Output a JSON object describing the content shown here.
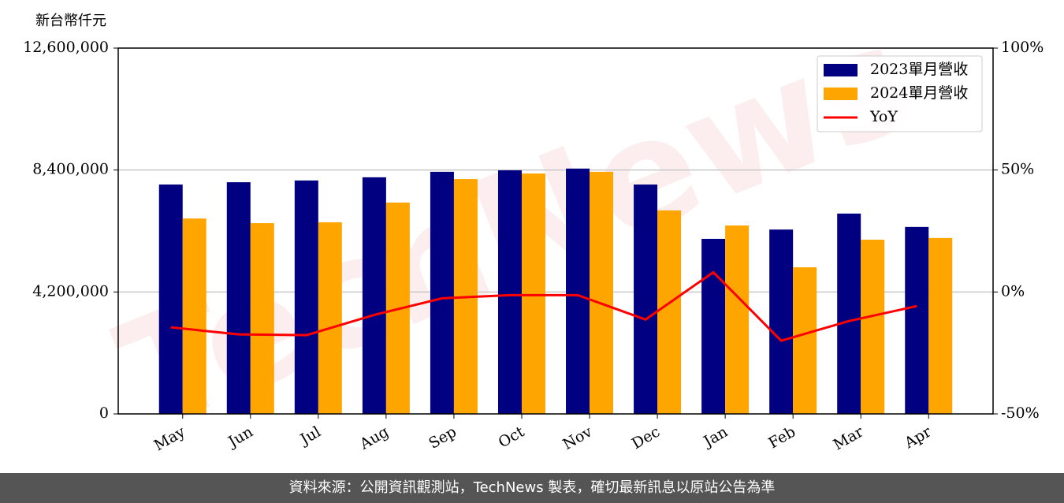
{
  "chart_data": {
    "type": "bar_line",
    "y_label": "新台幣仟元",
    "watermark": "TechNews",
    "categories": [
      "May",
      "Jun",
      "Jul",
      "Aug",
      "Sep",
      "Oct",
      "Nov",
      "Dec",
      "Jan",
      "Feb",
      "Mar",
      "Apr"
    ],
    "series": [
      {
        "name": "2023單月營收",
        "color": "#000080",
        "values": [
          7900000,
          7980000,
          8040000,
          8150000,
          8340000,
          8390000,
          8450000,
          7900000,
          6030000,
          6350000,
          6900000,
          6440000
        ]
      },
      {
        "name": "2024單月營收",
        "color": "#ffa500",
        "values": [
          6730000,
          6570000,
          6600000,
          7280000,
          8090000,
          8280000,
          8340000,
          7010000,
          6490000,
          5050000,
          6000000,
          6060000
        ]
      },
      {
        "name": "YoY",
        "color": "#ff0000",
        "axis": "y2",
        "type": "line",
        "values": [
          -14.5,
          -17.4,
          -17.7,
          -9.4,
          -2.6,
          -1.3,
          -1.3,
          -11.3,
          8.1,
          -20.0,
          -11.9,
          -5.8
        ]
      }
    ],
    "ylim": [
      0,
      12600000
    ],
    "yticks": [
      0,
      {
        "value": 4200000,
        "label": "4,200,000"
      },
      {
        "value": 8400000,
        "label": "8,400,000"
      },
      {
        "value": 12600000,
        "label": "12,600,000"
      }
    ],
    "y2lim": [
      -50,
      100
    ],
    "y2ticks": [
      {
        "value": -50,
        "label": "-50%"
      },
      {
        "value": 0,
        "label": "0%"
      },
      {
        "value": 50,
        "label": "50%"
      },
      {
        "value": 100,
        "label": "100%"
      }
    ],
    "grid": true,
    "legend": "upper right",
    "source": "資料來源：公開資訊觀測站，TechNews 製表，確切最新訊息以原站公告為準"
  }
}
